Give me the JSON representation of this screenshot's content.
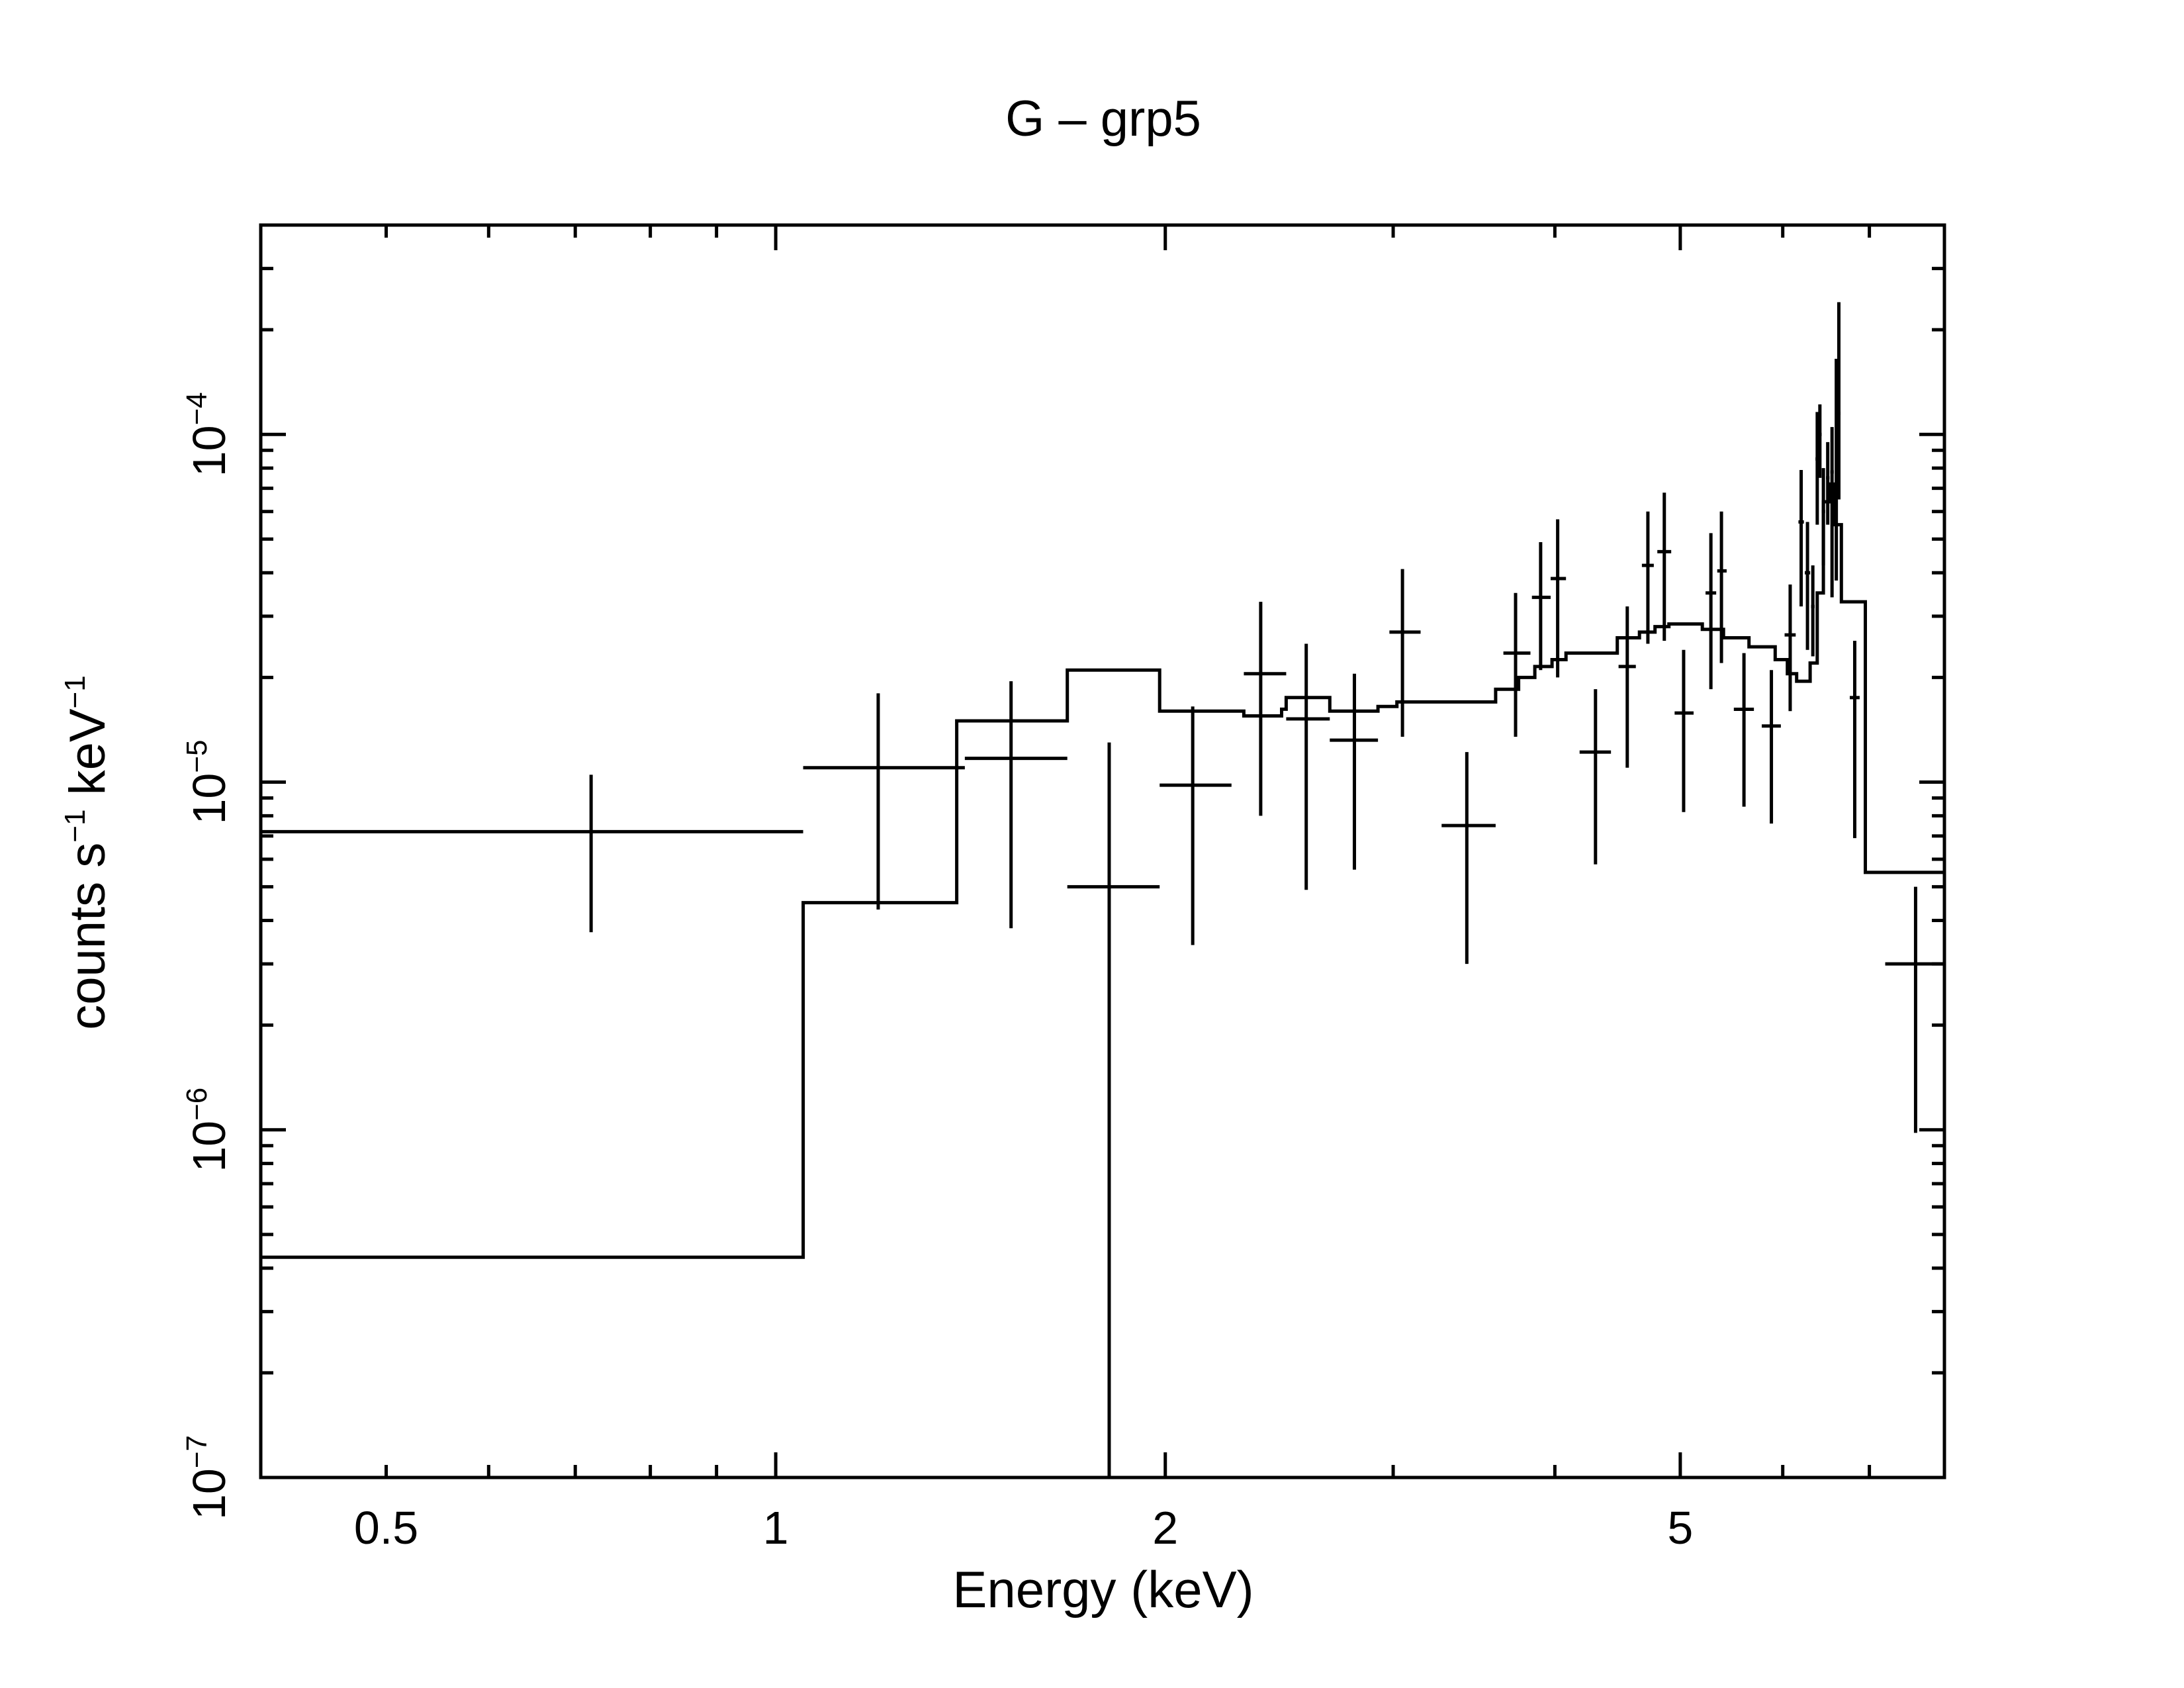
{
  "chart_data": {
    "type": "line",
    "scale": {
      "x": "log",
      "y": "log"
    },
    "title": "G – grp5",
    "xlabel": "Energy (keV)",
    "ylabel": {
      "base": "counts s",
      "exp1": "−1",
      "mid": " keV",
      "exp2": "−1"
    },
    "xlim": [
      0.4,
      8.0
    ],
    "ylim": [
      1e-07,
      0.0004
    ],
    "grid": false,
    "x_tick_labels": [
      {
        "value": 0.5,
        "label": "0.5"
      },
      {
        "value": 1,
        "label": "1"
      },
      {
        "value": 2,
        "label": "2"
      },
      {
        "value": 5,
        "label": "5"
      }
    ],
    "y_tick_labels": [
      {
        "value": 1e-07,
        "base": "10",
        "exp": "−7"
      },
      {
        "value": 1e-06,
        "base": "10",
        "exp": "−6"
      },
      {
        "value": 1e-05,
        "base": "10",
        "exp": "−5"
      },
      {
        "value": 0.0001,
        "base": "10",
        "exp": "−4"
      }
    ],
    "data_points": [
      {
        "x": 0.72,
        "xlo": 0.4,
        "xhi": 1.05,
        "y": 7.2e-06,
        "ylo": 3.7e-06,
        "yhi": 1.05e-05
      },
      {
        "x": 1.2,
        "xlo": 1.05,
        "xhi": 1.4,
        "y": 1.1e-05,
        "ylo": 4.3e-06,
        "yhi": 1.8e-05
      },
      {
        "x": 1.52,
        "xlo": 1.4,
        "xhi": 1.68,
        "y": 1.17e-05,
        "ylo": 3.8e-06,
        "yhi": 1.95e-05
      },
      {
        "x": 1.81,
        "xlo": 1.68,
        "xhi": 1.98,
        "y": 5e-06,
        "ylo": 1e-07,
        "yhi": 1.3e-05
      },
      {
        "x": 2.1,
        "xlo": 1.98,
        "xhi": 2.25,
        "y": 9.8e-06,
        "ylo": 3.4e-06,
        "yhi": 1.65e-05
      },
      {
        "x": 2.37,
        "xlo": 2.3,
        "xhi": 2.48,
        "y": 2.05e-05,
        "ylo": 8e-06,
        "yhi": 3.3e-05
      },
      {
        "x": 2.57,
        "xlo": 2.48,
        "xhi": 2.68,
        "y": 1.52e-05,
        "ylo": 4.9e-06,
        "yhi": 2.5e-05
      },
      {
        "x": 2.8,
        "xlo": 2.68,
        "xhi": 2.92,
        "y": 1.32e-05,
        "ylo": 5.6e-06,
        "yhi": 2.05e-05
      },
      {
        "x": 3.05,
        "xlo": 2.98,
        "xhi": 3.15,
        "y": 2.7e-05,
        "ylo": 1.35e-05,
        "yhi": 4.1e-05
      },
      {
        "x": 3.42,
        "xlo": 3.27,
        "xhi": 3.6,
        "y": 7.5e-06,
        "ylo": 3e-06,
        "yhi": 1.22e-05
      },
      {
        "x": 3.73,
        "xlo": 3.65,
        "xhi": 3.83,
        "y": 2.35e-05,
        "ylo": 1.35e-05,
        "yhi": 3.5e-05
      },
      {
        "x": 3.9,
        "xlo": 3.84,
        "xhi": 3.97,
        "y": 3.4e-05,
        "ylo": 2.1e-05,
        "yhi": 4.9e-05
      },
      {
        "x": 4.02,
        "xlo": 3.97,
        "xhi": 4.08,
        "y": 3.85e-05,
        "ylo": 2e-05,
        "yhi": 5.7e-05
      },
      {
        "x": 4.3,
        "xlo": 4.18,
        "xhi": 4.42,
        "y": 1.22e-05,
        "ylo": 5.8e-06,
        "yhi": 1.85e-05
      },
      {
        "x": 4.55,
        "xlo": 4.48,
        "xhi": 4.62,
        "y": 2.15e-05,
        "ylo": 1.1e-05,
        "yhi": 3.2e-05
      },
      {
        "x": 4.72,
        "xlo": 4.67,
        "xhi": 4.77,
        "y": 4.2e-05,
        "ylo": 2.5e-05,
        "yhi": 6e-05
      },
      {
        "x": 4.86,
        "xlo": 4.8,
        "xhi": 4.92,
        "y": 4.6e-05,
        "ylo": 2.55e-05,
        "yhi": 6.8e-05
      },
      {
        "x": 5.03,
        "xlo": 4.95,
        "xhi": 5.12,
        "y": 1.58e-05,
        "ylo": 8.2e-06,
        "yhi": 2.4e-05
      },
      {
        "x": 5.28,
        "xlo": 5.23,
        "xhi": 5.33,
        "y": 3.5e-05,
        "ylo": 1.85e-05,
        "yhi": 5.2e-05
      },
      {
        "x": 5.38,
        "xlo": 5.34,
        "xhi": 5.43,
        "y": 4.05e-05,
        "ylo": 2.2e-05,
        "yhi": 6e-05
      },
      {
        "x": 5.6,
        "xlo": 5.5,
        "xhi": 5.7,
        "y": 1.62e-05,
        "ylo": 8.5e-06,
        "yhi": 2.35e-05
      },
      {
        "x": 5.88,
        "xlo": 5.78,
        "xhi": 5.98,
        "y": 1.45e-05,
        "ylo": 7.6e-06,
        "yhi": 2.1e-05
      },
      {
        "x": 6.08,
        "xlo": 6.02,
        "xhi": 6.14,
        "y": 2.65e-05,
        "ylo": 1.6e-05,
        "yhi": 3.7e-05
      },
      {
        "x": 6.2,
        "xlo": 6.17,
        "xhi": 6.23,
        "y": 5.6e-05,
        "ylo": 3.2e-05,
        "yhi": 7.9e-05
      },
      {
        "x": 6.27,
        "xlo": 6.24,
        "xhi": 6.3,
        "y": 4e-05,
        "ylo": 2.4e-05,
        "yhi": 5.6e-05
      },
      {
        "x": 6.33,
        "xlo": 6.31,
        "xhi": 6.35,
        "y": 3.2e-05,
        "ylo": 2.3e-05,
        "yhi": 4.2e-05
      },
      {
        "x": 6.38,
        "xlo": 6.36,
        "xhi": 6.4,
        "y": 8.5e-05,
        "ylo": 5.5e-05,
        "yhi": 0.000116
      },
      {
        "x": 6.41,
        "xlo": 6.4,
        "xhi": 6.43,
        "y": 0.0001,
        "ylo": 7.5e-05,
        "yhi": 0.000122
      },
      {
        "x": 6.45,
        "xlo": 6.43,
        "xhi": 6.47,
        "y": 6e-05,
        "ylo": 4.2e-05,
        "yhi": 8e-05
      },
      {
        "x": 6.5,
        "xlo": 6.48,
        "xhi": 6.52,
        "y": 7.5e-05,
        "ylo": 5.5e-05,
        "yhi": 9.5e-05
      },
      {
        "x": 6.55,
        "xlo": 6.53,
        "xhi": 6.57,
        "y": 7.8e-05,
        "ylo": 3.4e-05,
        "yhi": 0.000105
      },
      {
        "x": 6.6,
        "xlo": 6.58,
        "xhi": 6.62,
        "y": 7e-05,
        "ylo": 3.8e-05,
        "yhi": 0.000165
      },
      {
        "x": 6.63,
        "xlo": 6.62,
        "xhi": 6.65,
        "y": 0.000115,
        "ylo": 6.5e-05,
        "yhi": 0.00024
      },
      {
        "x": 6.82,
        "xlo": 6.76,
        "xhi": 6.88,
        "y": 1.75e-05,
        "ylo": 6.9e-06,
        "yhi": 2.55e-05
      },
      {
        "x": 7.6,
        "xlo": 7.2,
        "xhi": 8.0,
        "y": 3e-06,
        "ylo": 9.8e-07,
        "yhi": 5e-06
      }
    ],
    "model_steps": [
      [
        0.4,
        4.3e-07
      ],
      [
        1.05,
        4.5e-06
      ],
      [
        1.38,
        1.5e-05
      ],
      [
        1.68,
        2.1e-05
      ],
      [
        1.98,
        1.6e-05
      ],
      [
        2.3,
        1.55e-05
      ],
      [
        2.46,
        1.62e-05
      ],
      [
        2.48,
        1.75e-05
      ],
      [
        2.68,
        1.6e-05
      ],
      [
        2.92,
        1.65e-05
      ],
      [
        3.02,
        1.7e-05
      ],
      [
        3.6,
        1.85e-05
      ],
      [
        3.75,
        2e-05
      ],
      [
        3.86,
        2.15e-05
      ],
      [
        3.98,
        2.25e-05
      ],
      [
        4.08,
        2.35e-05
      ],
      [
        4.47,
        2.6e-05
      ],
      [
        4.65,
        2.7e-05
      ],
      [
        4.78,
        2.8e-05
      ],
      [
        4.9,
        2.85e-05
      ],
      [
        5.2,
        2.75e-05
      ],
      [
        5.4,
        2.6e-05
      ],
      [
        5.65,
        2.45e-05
      ],
      [
        5.92,
        2.25e-05
      ],
      [
        6.05,
        2.05e-05
      ],
      [
        6.15,
        1.95e-05
      ],
      [
        6.3,
        2.2e-05
      ],
      [
        6.38,
        3.5e-05
      ],
      [
        6.45,
        6.4e-05
      ],
      [
        6.52,
        7.2e-05
      ],
      [
        6.58,
        5.5e-05
      ],
      [
        6.66,
        3.3e-05
      ],
      [
        6.95,
        5.5e-06
      ],
      [
        8.0,
        5.5e-06
      ]
    ]
  }
}
